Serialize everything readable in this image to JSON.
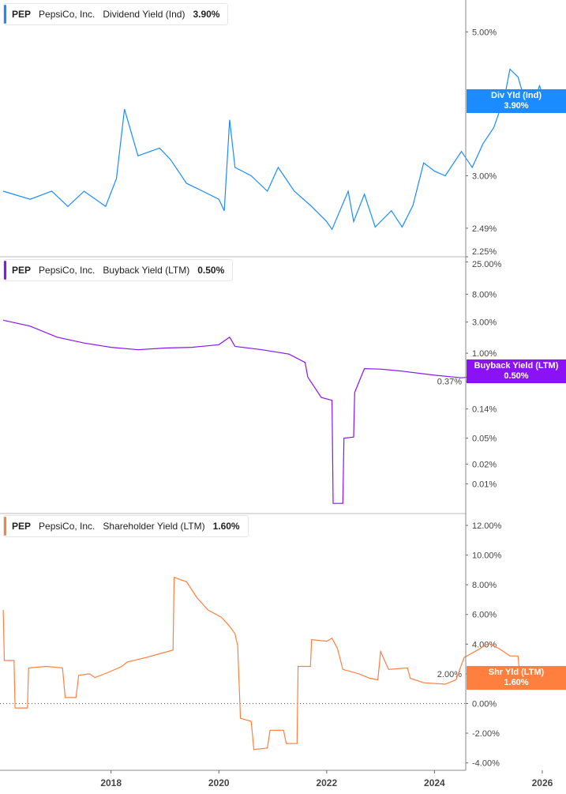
{
  "chart_data": [
    {
      "type": "line",
      "ticker": "PEP",
      "company": "PepsiCo, Inc.",
      "series_name": "Dividend Yield (Ind)",
      "current": "3.90%",
      "tag_label": "Div Yld (Ind)",
      "color": "#1a8cff",
      "scale": "log",
      "ylim": [
        2.25,
        5.6
      ],
      "yticks": [
        "5.00%",
        "3.00%",
        "2.49%",
        "2.25%"
      ],
      "ytick_values": [
        5,
        3,
        2.49,
        2.25
      ],
      "x": [
        2016.0,
        2016.5,
        2016.9,
        2017.2,
        2017.5,
        2017.9,
        2018.1,
        2018.25,
        2018.5,
        2018.9,
        2019.1,
        2019.4,
        2019.7,
        2020.0,
        2020.1,
        2020.2,
        2020.3,
        2020.6,
        2020.9,
        2021.1,
        2021.4,
        2021.7,
        2022.0,
        2022.1,
        2022.4,
        2022.5,
        2022.7,
        2022.9,
        2023.2,
        2023.4,
        2023.6,
        2023.8,
        2024.0,
        2024.2,
        2024.5,
        2024.7,
        2024.9,
        2025.1,
        2025.3,
        2025.4,
        2025.55,
        2025.7,
        2025.8,
        2025.95,
        2026.05
      ],
      "y": [
        2.84,
        2.76,
        2.84,
        2.69,
        2.84,
        2.69,
        2.97,
        3.8,
        3.22,
        3.31,
        3.18,
        2.92,
        2.84,
        2.76,
        2.65,
        3.66,
        3.09,
        3.0,
        2.84,
        3.09,
        2.84,
        2.7,
        2.55,
        2.48,
        2.84,
        2.55,
        2.81,
        2.5,
        2.65,
        2.5,
        2.7,
        3.14,
        3.05,
        3.0,
        3.27,
        3.09,
        3.36,
        3.56,
        3.97,
        4.38,
        4.26,
        3.86,
        3.81,
        4.13,
        3.9
      ]
    },
    {
      "type": "line",
      "ticker": "PEP",
      "company": "PepsiCo, Inc.",
      "series_name": "Buyback Yield (LTM)",
      "current": "0.50%",
      "tag_label": "Buyback Yield (LTM)",
      "color": "#8a12f5",
      "scale": "log",
      "ylim": [
        0.0035,
        30
      ],
      "yticks": [
        "25.00%",
        "8.00%",
        "3.00%",
        "1.00%",
        "0.37%",
        "0.14%",
        "0.05%",
        "0.02%",
        "0.01%"
      ],
      "ytick_values": [
        25,
        8,
        3,
        1,
        0.37,
        0.14,
        0.05,
        0.02,
        0.01
      ],
      "x": [
        2016.0,
        2016.5,
        2017.0,
        2017.5,
        2018.0,
        2018.5,
        2019.0,
        2019.5,
        2020.0,
        2020.2,
        2020.3,
        2020.8,
        2021.3,
        2021.6,
        2021.65,
        2021.9,
        2022.1,
        2022.12,
        2022.3,
        2022.32,
        2022.5,
        2022.52,
        2022.7,
        2023.0,
        2023.4,
        2024.0,
        2024.5,
        2025.0,
        2025.5,
        2026.05
      ],
      "y": [
        3.2,
        2.6,
        1.76,
        1.43,
        1.23,
        1.13,
        1.2,
        1.23,
        1.35,
        1.76,
        1.27,
        1.13,
        0.97,
        0.72,
        0.43,
        0.21,
        0.19,
        0.005,
        0.005,
        0.05,
        0.052,
        0.25,
        0.58,
        0.57,
        0.53,
        0.46,
        0.42,
        0.46,
        0.53,
        0.5
      ]
    },
    {
      "type": "line",
      "ticker": "PEP",
      "company": "PepsiCo, Inc.",
      "series_name": "Shareholder Yield (LTM)",
      "current": "1.60%",
      "tag_label": "Shr Yld (LTM)",
      "color": "#ff7f3f",
      "scale": "linear",
      "ylim": [
        -4.5,
        12.8
      ],
      "yticks": [
        "12.00%",
        "10.00%",
        "8.00%",
        "6.00%",
        "4.00%",
        "2.00%",
        "0.00%",
        "-2.00%",
        "-4.00%"
      ],
      "ytick_values": [
        12,
        10,
        8,
        6,
        4,
        2,
        0,
        -2,
        -4
      ],
      "x": [
        2016.0,
        2016.02,
        2016.2,
        2016.22,
        2016.45,
        2016.47,
        2016.8,
        2017.1,
        2017.15,
        2017.35,
        2017.4,
        2017.6,
        2017.7,
        2017.95,
        2018.2,
        2018.3,
        2018.65,
        2018.9,
        2019.15,
        2019.17,
        2019.4,
        2019.6,
        2019.8,
        2020.05,
        2020.2,
        2020.3,
        2020.35,
        2020.4,
        2020.6,
        2020.65,
        2020.9,
        2020.95,
        2021.2,
        2021.25,
        2021.45,
        2021.47,
        2021.7,
        2021.72,
        2022.0,
        2022.1,
        2022.2,
        2022.3,
        2022.6,
        2022.8,
        2022.95,
        2023.0,
        2023.15,
        2023.5,
        2023.55,
        2023.8,
        2024.2,
        2024.4,
        2024.55,
        2024.8,
        2025.0,
        2025.2,
        2025.4,
        2025.55,
        2025.6,
        2025.9,
        2026.05
      ],
      "y": [
        6.3,
        2.9,
        2.9,
        -0.3,
        -0.3,
        2.4,
        2.5,
        2.4,
        0.4,
        0.4,
        1.9,
        2.0,
        1.75,
        2.1,
        2.5,
        2.8,
        3.1,
        3.35,
        3.6,
        8.5,
        8.2,
        7.1,
        6.3,
        5.8,
        5.2,
        4.7,
        3.9,
        -1.0,
        -1.2,
        -3.1,
        -3.0,
        -1.8,
        -1.8,
        -2.7,
        -2.7,
        2.5,
        2.5,
        4.3,
        4.2,
        4.4,
        3.7,
        2.3,
        2.0,
        1.7,
        1.6,
        3.5,
        2.3,
        2.4,
        1.7,
        1.4,
        1.3,
        1.6,
        3.1,
        3.6,
        4.05,
        3.7,
        3.2,
        3.2,
        1.4,
        1.6,
        1.6
      ]
    }
  ],
  "xaxis": {
    "ticks": [
      "2018",
      "2020",
      "2022",
      "2024",
      "2026"
    ],
    "tick_values": [
      2018,
      2020,
      2022,
      2024,
      2026
    ],
    "xlim": [
      2015.94,
      2026.44
    ]
  }
}
